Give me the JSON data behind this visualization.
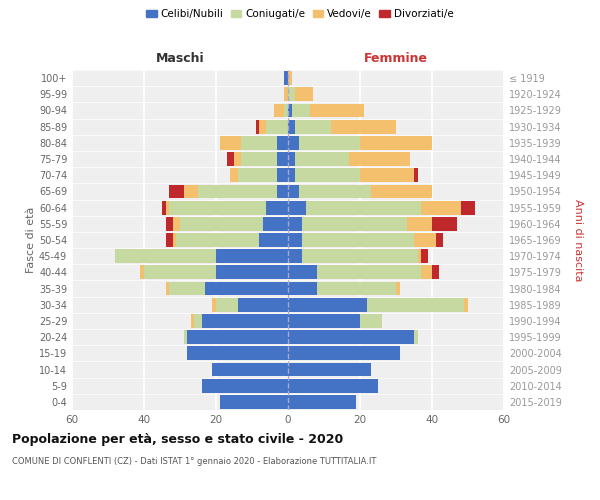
{
  "age_groups": [
    "0-4",
    "5-9",
    "10-14",
    "15-19",
    "20-24",
    "25-29",
    "30-34",
    "35-39",
    "40-44",
    "45-49",
    "50-54",
    "55-59",
    "60-64",
    "65-69",
    "70-74",
    "75-79",
    "80-84",
    "85-89",
    "90-94",
    "95-99",
    "100+"
  ],
  "birth_years": [
    "2015-2019",
    "2010-2014",
    "2005-2009",
    "2000-2004",
    "1995-1999",
    "1990-1994",
    "1985-1989",
    "1980-1984",
    "1975-1979",
    "1970-1974",
    "1965-1969",
    "1960-1964",
    "1955-1959",
    "1950-1954",
    "1945-1949",
    "1940-1944",
    "1935-1939",
    "1930-1934",
    "1925-1929",
    "1920-1924",
    "≤ 1919"
  ],
  "colors": {
    "celibe": "#4472c4",
    "coniugato": "#c5d9a0",
    "vedovo": "#f5c06e",
    "divorziato": "#c0292b"
  },
  "males": {
    "celibe": [
      19,
      24,
      21,
      28,
      28,
      24,
      14,
      23,
      20,
      20,
      8,
      7,
      6,
      3,
      3,
      3,
      3,
      0,
      0,
      0,
      1
    ],
    "coniugato": [
      0,
      0,
      0,
      0,
      1,
      2,
      6,
      10,
      20,
      28,
      23,
      23,
      27,
      22,
      11,
      10,
      10,
      6,
      1,
      0,
      0
    ],
    "vedovo": [
      0,
      0,
      0,
      0,
      0,
      1,
      1,
      1,
      1,
      0,
      1,
      2,
      1,
      4,
      2,
      2,
      6,
      2,
      3,
      1,
      0
    ],
    "divorziato": [
      0,
      0,
      0,
      0,
      0,
      0,
      0,
      0,
      0,
      0,
      2,
      2,
      1,
      4,
      0,
      2,
      0,
      1,
      0,
      0,
      0
    ]
  },
  "females": {
    "celibe": [
      19,
      25,
      23,
      31,
      35,
      20,
      22,
      8,
      8,
      4,
      4,
      4,
      5,
      3,
      2,
      2,
      3,
      2,
      1,
      0,
      0
    ],
    "coniugato": [
      0,
      0,
      0,
      0,
      1,
      6,
      27,
      22,
      29,
      32,
      31,
      29,
      32,
      20,
      18,
      15,
      17,
      10,
      5,
      2,
      0
    ],
    "vedovo": [
      0,
      0,
      0,
      0,
      0,
      0,
      1,
      1,
      3,
      1,
      6,
      7,
      11,
      17,
      15,
      17,
      20,
      18,
      15,
      5,
      1
    ],
    "divorziato": [
      0,
      0,
      0,
      0,
      0,
      0,
      0,
      0,
      2,
      2,
      2,
      7,
      4,
      0,
      1,
      0,
      0,
      0,
      0,
      0,
      0
    ]
  },
  "xlim": 60,
  "title": "Popolazione per età, sesso e stato civile - 2020",
  "subtitle": "COMUNE DI CONFLENTI (CZ) - Dati ISTAT 1° gennaio 2020 - Elaborazione TUTTITALIA.IT",
  "ylabel_left": "Fasce di età",
  "ylabel_right": "Anni di nascita",
  "xlabel_left": "Maschi",
  "xlabel_right": "Femmine",
  "bg_color": "#efefef",
  "bar_height": 0.85
}
